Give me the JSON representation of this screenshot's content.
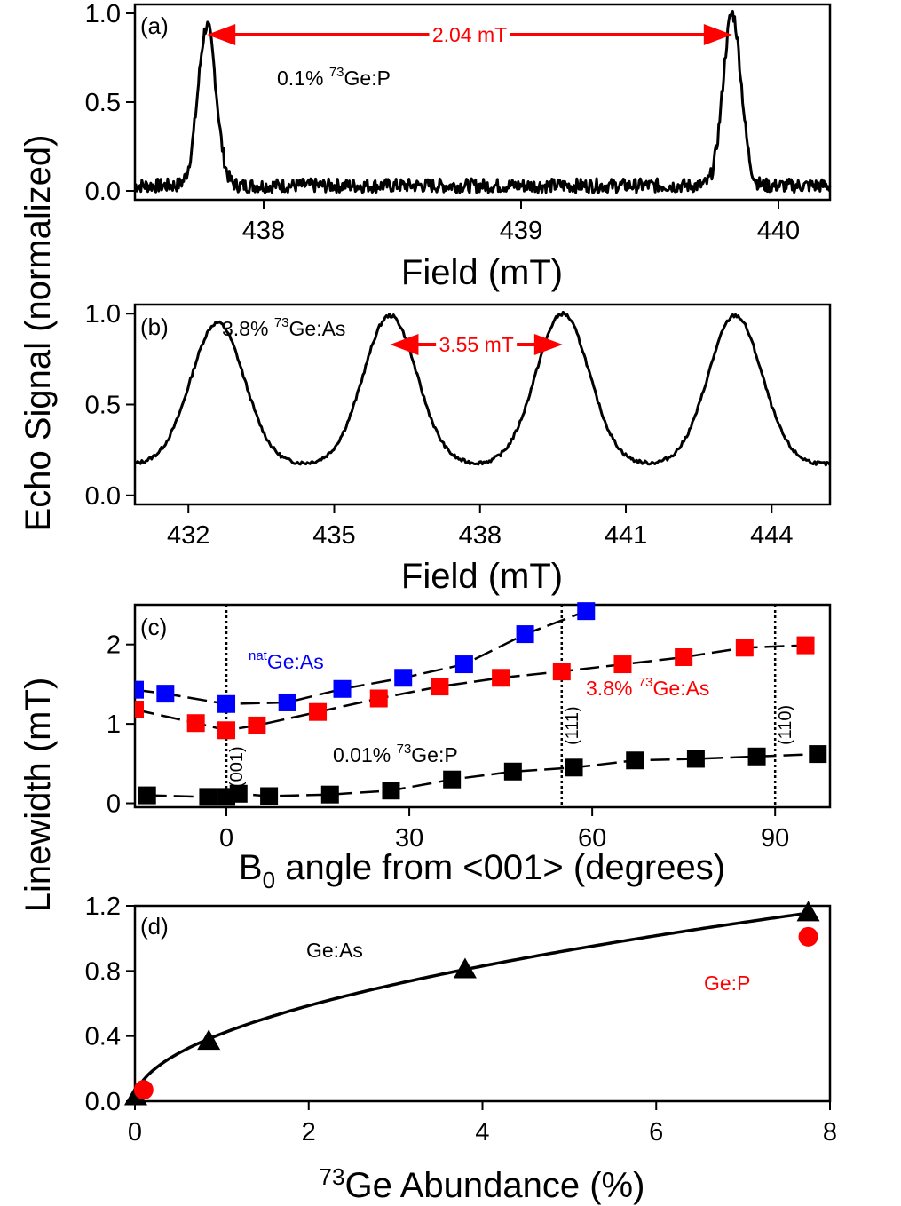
{
  "figure": {
    "y_axis_title_top": "Echo Signal (normalized)",
    "y_axis_title_bottom": "Linewidth (mT)"
  },
  "colors": {
    "red": "#ff0000",
    "blue": "#0000ff",
    "black": "#000000"
  },
  "chart_data": [
    {
      "id": "a",
      "type": "line",
      "panel_label": "(a)",
      "xlabel": "Field (mT)",
      "ylabel": "Echo Signal (normalized)",
      "xlim": [
        437.5,
        440.2
      ],
      "ylim": [
        -0.05,
        1.05
      ],
      "xticks": [
        "438",
        "439",
        "440"
      ],
      "yticks": [
        "0.0",
        "0.5",
        "1.0"
      ],
      "peaks": [
        {
          "center": 437.78,
          "height": 0.93,
          "width": 0.035
        },
        {
          "center": 439.82,
          "height": 1.0,
          "width": 0.035
        }
      ],
      "baseline": 0.03,
      "noise": 0.04,
      "arrow": {
        "from": 437.78,
        "to": 439.82,
        "y": 0.88,
        "label": "2.04 mT"
      },
      "sample_label_prefix": "0.1% ",
      "sample_label_sup": "73",
      "sample_label_suffix": "Ge:P"
    },
    {
      "id": "b",
      "type": "line",
      "panel_label": "(b)",
      "xlabel": "Field (mT)",
      "xlim": [
        430.9,
        445.2
      ],
      "ylim": [
        -0.05,
        1.05
      ],
      "xticks": [
        "432",
        "435",
        "438",
        "441",
        "444"
      ],
      "yticks": [
        "0.0",
        "0.5",
        "1.0"
      ],
      "peaks": [
        {
          "center": 432.6,
          "height": 0.95,
          "width": 0.55
        },
        {
          "center": 436.15,
          "height": 0.99,
          "width": 0.55
        },
        {
          "center": 439.7,
          "height": 1.0,
          "width": 0.55
        },
        {
          "center": 443.25,
          "height": 0.99,
          "width": 0.55
        }
      ],
      "baseline": 0.17,
      "noise": 0.01,
      "arrow": {
        "from": 436.15,
        "to": 439.7,
        "y": 0.83,
        "label": "3.55 mT"
      },
      "sample_label_prefix": "3.8% ",
      "sample_label_sup": "73",
      "sample_label_suffix": "Ge:As"
    },
    {
      "id": "c",
      "type": "scatter",
      "panel_label": "(c)",
      "xlabel_main": "B",
      "xlabel_sub": "0",
      "xlabel_rest": " angle from <001> (degrees)",
      "ylabel": "Linewidth (mT)",
      "xlim": [
        -15,
        99
      ],
      "ylim": [
        -0.05,
        2.5
      ],
      "xticks": [
        "0",
        "30",
        "60",
        "90"
      ],
      "yticks": [
        "0",
        "1",
        "2"
      ],
      "vlines": [
        {
          "x": 0,
          "label": "(001)"
        },
        {
          "x": 55,
          "label": "(111)"
        },
        {
          "x": 90,
          "label": "(110)"
        }
      ],
      "series": [
        {
          "name": "natGe:As",
          "label_sup": "nat",
          "label_text": "Ge:As",
          "color": "#0000ff",
          "x": [
            -15,
            -10,
            0,
            10,
            19,
            29,
            39,
            49,
            59
          ],
          "y": [
            1.43,
            1.38,
            1.25,
            1.27,
            1.44,
            1.58,
            1.75,
            2.13,
            2.42
          ]
        },
        {
          "name": "3.8% 73Ge:As",
          "label_prefix": "3.8% ",
          "label_sup": "73",
          "label_text": "Ge:As",
          "color": "#ff0000",
          "x": [
            -15,
            -5,
            0,
            5,
            15,
            25,
            35,
            45,
            55,
            65,
            75,
            85,
            95
          ],
          "y": [
            1.18,
            1.01,
            0.92,
            0.98,
            1.15,
            1.32,
            1.47,
            1.58,
            1.66,
            1.75,
            1.84,
            1.96,
            1.99
          ]
        },
        {
          "name": "0.01% 73Ge:P",
          "label_prefix": "0.01% ",
          "label_sup": "73",
          "label_text": "Ge:P",
          "color": "#000000",
          "x": [
            -13,
            -3,
            0,
            2,
            7,
            17,
            27,
            37,
            47,
            57,
            67,
            77,
            87,
            97
          ],
          "y": [
            0.1,
            0.08,
            0.08,
            0.12,
            0.09,
            0.11,
            0.16,
            0.3,
            0.4,
            0.45,
            0.54,
            0.56,
            0.59,
            0.62
          ]
        }
      ]
    },
    {
      "id": "d",
      "type": "scatter",
      "panel_label": "(d)",
      "xlabel_sup": "73",
      "xlabel_rest": "Ge Abundance (%)",
      "xlim": [
        0,
        8
      ],
      "ylim": [
        0,
        1.2
      ],
      "xticks": [
        "0",
        "2",
        "4",
        "6",
        "8"
      ],
      "yticks": [
        "0.0",
        "0.4",
        "0.8",
        "1.2"
      ],
      "series": [
        {
          "name": "Ge:As",
          "marker": "triangle",
          "color": "#000000",
          "x": [
            0.01,
            0.85,
            3.8,
            7.75
          ],
          "y": [
            0.03,
            0.37,
            0.81,
            1.16
          ]
        },
        {
          "name": "Ge:P",
          "marker": "circle",
          "color": "#ff0000",
          "x": [
            0.1,
            7.75
          ],
          "y": [
            0.07,
            1.01
          ]
        }
      ],
      "fit": {
        "form": "a*x^0.5",
        "a": 0.415,
        "x_range": [
          0,
          7.75
        ]
      }
    }
  ]
}
